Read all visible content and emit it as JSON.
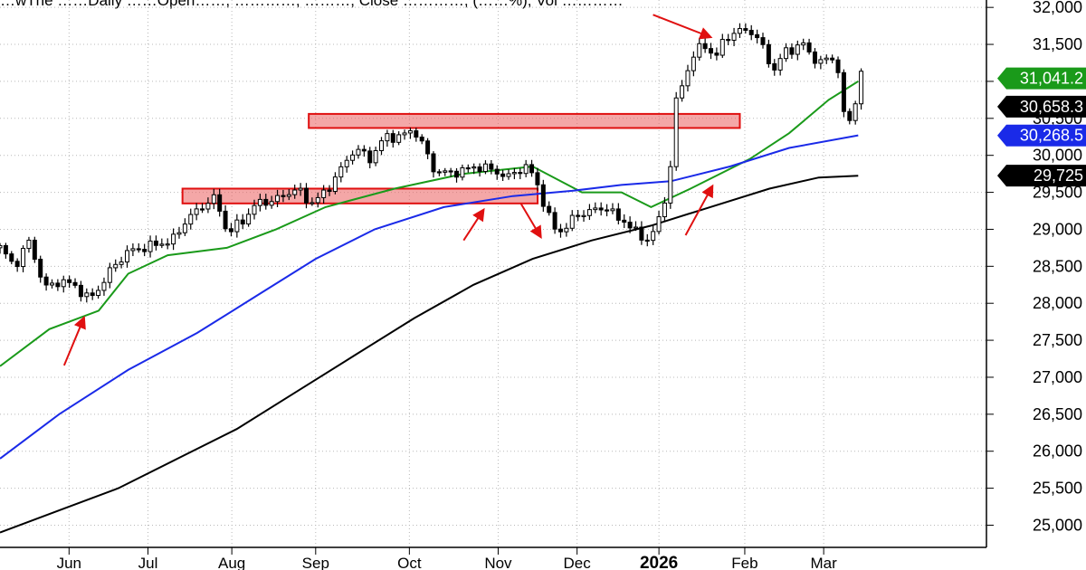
{
  "header": {
    "text": "…wThe ……Daily ……Open……, …………, ………, Close …………, (……%), Vol …………"
  },
  "chart_data": {
    "type": "candlestick",
    "title": "",
    "xlabel": "",
    "ylabel": "",
    "ylim": [
      24700,
      32100
    ],
    "y_ticks": [
      25000,
      25500,
      26000,
      26500,
      27000,
      27500,
      28000,
      28500,
      29000,
      29500,
      30000,
      30500,
      31000,
      31500,
      32000
    ],
    "y_tick_labels": [
      "25,000",
      "25,500",
      "26,000",
      "26,500",
      "27,000",
      "27,500",
      "28,000",
      "28,500",
      "29,000",
      "29,500",
      "30,000",
      "30,500",
      "31,000",
      "31,500",
      "32,000"
    ],
    "x_ticks": [
      {
        "label": "Jun",
        "t": 0.07,
        "bold": false
      },
      {
        "label": "Jul",
        "t": 0.15,
        "bold": false
      },
      {
        "label": "Aug",
        "t": 0.235,
        "bold": false
      },
      {
        "label": "Sep",
        "t": 0.32,
        "bold": false
      },
      {
        "label": "Oct",
        "t": 0.415,
        "bold": false
      },
      {
        "label": "Nov",
        "t": 0.505,
        "bold": false
      },
      {
        "label": "Dec",
        "t": 0.585,
        "bold": false
      },
      {
        "label": "2026",
        "t": 0.668,
        "bold": true
      },
      {
        "label": "Feb",
        "t": 0.755,
        "bold": false
      },
      {
        "label": "Mar",
        "t": 0.835,
        "bold": false
      }
    ],
    "grid": true,
    "price_labels": [
      {
        "value": 31041.2,
        "text": "31,041.2",
        "color": "#1a9a1a"
      },
      {
        "value": 30658.3,
        "text": "30,658.3",
        "color": "#000000"
      },
      {
        "value": 30268.5,
        "text": "30,268.5",
        "color": "#1a2ae8"
      },
      {
        "value": 29725,
        "text": "29,725",
        "color": "#000000"
      }
    ],
    "price_path": [
      [
        0.0,
        28750
      ],
      [
        0.015,
        28500
      ],
      [
        0.03,
        28850
      ],
      [
        0.045,
        28200
      ],
      [
        0.06,
        28300
      ],
      [
        0.075,
        28250
      ],
      [
        0.09,
        28050
      ],
      [
        0.1,
        28200
      ],
      [
        0.115,
        28500
      ],
      [
        0.13,
        28700
      ],
      [
        0.145,
        28750
      ],
      [
        0.16,
        28800
      ],
      [
        0.175,
        28850
      ],
      [
        0.19,
        29150
      ],
      [
        0.205,
        29300
      ],
      [
        0.215,
        29450
      ],
      [
        0.225,
        29200
      ],
      [
        0.23,
        28950
      ],
      [
        0.245,
        29100
      ],
      [
        0.26,
        29350
      ],
      [
        0.28,
        29400
      ],
      [
        0.3,
        29550
      ],
      [
        0.315,
        29350
      ],
      [
        0.33,
        29500
      ],
      [
        0.345,
        29800
      ],
      [
        0.36,
        30100
      ],
      [
        0.375,
        29950
      ],
      [
        0.39,
        30250
      ],
      [
        0.405,
        30250
      ],
      [
        0.42,
        30350
      ],
      [
        0.43,
        30100
      ],
      [
        0.44,
        29800
      ],
      [
        0.455,
        29750
      ],
      [
        0.47,
        29800
      ],
      [
        0.485,
        29850
      ],
      [
        0.5,
        29800
      ],
      [
        0.515,
        29700
      ],
      [
        0.525,
        29800
      ],
      [
        0.535,
        29850
      ],
      [
        0.545,
        29600
      ],
      [
        0.555,
        29200
      ],
      [
        0.565,
        28950
      ],
      [
        0.575,
        29050
      ],
      [
        0.585,
        29200
      ],
      [
        0.6,
        29250
      ],
      [
        0.615,
        29300
      ],
      [
        0.625,
        29150
      ],
      [
        0.635,
        29100
      ],
      [
        0.645,
        28950
      ],
      [
        0.655,
        28850
      ],
      [
        0.665,
        29000
      ],
      [
        0.675,
        29450
      ],
      [
        0.68,
        29900
      ],
      [
        0.685,
        30700
      ],
      [
        0.695,
        31100
      ],
      [
        0.705,
        31400
      ],
      [
        0.715,
        31500
      ],
      [
        0.725,
        31300
      ],
      [
        0.735,
        31600
      ],
      [
        0.745,
        31650
      ],
      [
        0.755,
        31700
      ],
      [
        0.765,
        31650
      ],
      [
        0.775,
        31400
      ],
      [
        0.785,
        31150
      ],
      [
        0.795,
        31400
      ],
      [
        0.805,
        31450
      ],
      [
        0.815,
        31500
      ],
      [
        0.825,
        31300
      ],
      [
        0.835,
        31250
      ],
      [
        0.845,
        31350
      ],
      [
        0.852,
        31000
      ],
      [
        0.858,
        30250
      ],
      [
        0.865,
        30650
      ],
      [
        0.873,
        31100
      ]
    ],
    "series": [
      {
        "color": "#1a9a1a",
        "points": [
          [
            0.0,
            27150
          ],
          [
            0.05,
            27650
          ],
          [
            0.1,
            27900
          ],
          [
            0.13,
            28400
          ],
          [
            0.17,
            28650
          ],
          [
            0.23,
            28750
          ],
          [
            0.28,
            29000
          ],
          [
            0.33,
            29300
          ],
          [
            0.4,
            29550
          ],
          [
            0.47,
            29750
          ],
          [
            0.54,
            29850
          ],
          [
            0.59,
            29500
          ],
          [
            0.63,
            29500
          ],
          [
            0.66,
            29300
          ],
          [
            0.7,
            29550
          ],
          [
            0.76,
            29950
          ],
          [
            0.8,
            30300
          ],
          [
            0.84,
            30750
          ],
          [
            0.87,
            31000
          ]
        ]
      },
      {
        "color": "#1a2ae8",
        "points": [
          [
            0.0,
            25900
          ],
          [
            0.06,
            26500
          ],
          [
            0.13,
            27100
          ],
          [
            0.2,
            27600
          ],
          [
            0.26,
            28100
          ],
          [
            0.32,
            28600
          ],
          [
            0.38,
            29000
          ],
          [
            0.45,
            29300
          ],
          [
            0.52,
            29450
          ],
          [
            0.58,
            29520
          ],
          [
            0.63,
            29600
          ],
          [
            0.68,
            29650
          ],
          [
            0.74,
            29850
          ],
          [
            0.8,
            30100
          ],
          [
            0.87,
            30270
          ]
        ]
      },
      {
        "color": "#000000",
        "points": [
          [
            0.0,
            24900
          ],
          [
            0.06,
            25200
          ],
          [
            0.12,
            25500
          ],
          [
            0.18,
            25900
          ],
          [
            0.24,
            26300
          ],
          [
            0.3,
            26800
          ],
          [
            0.36,
            27300
          ],
          [
            0.42,
            27800
          ],
          [
            0.48,
            28250
          ],
          [
            0.54,
            28600
          ],
          [
            0.6,
            28850
          ],
          [
            0.66,
            29050
          ],
          [
            0.72,
            29300
          ],
          [
            0.78,
            29550
          ],
          [
            0.83,
            29700
          ],
          [
            0.87,
            29725
          ]
        ]
      }
    ],
    "zones": [
      {
        "t0": 0.313,
        "t1": 0.75,
        "y0": 30370,
        "y1": 30560
      },
      {
        "t0": 0.185,
        "t1": 0.545,
        "y0": 29350,
        "y1": 29550
      }
    ],
    "arrows": [
      {
        "from": [
          0.065,
          27160
        ],
        "to": [
          0.085,
          27800
        ]
      },
      {
        "from": [
          0.47,
          28850
        ],
        "to": [
          0.49,
          29260
        ]
      },
      {
        "from": [
          0.528,
          29350
        ],
        "to": [
          0.548,
          28900
        ]
      },
      {
        "from": [
          0.662,
          31900
        ],
        "to": [
          0.72,
          31600
        ]
      },
      {
        "from": [
          0.695,
          28920
        ],
        "to": [
          0.722,
          29580
        ]
      }
    ]
  }
}
